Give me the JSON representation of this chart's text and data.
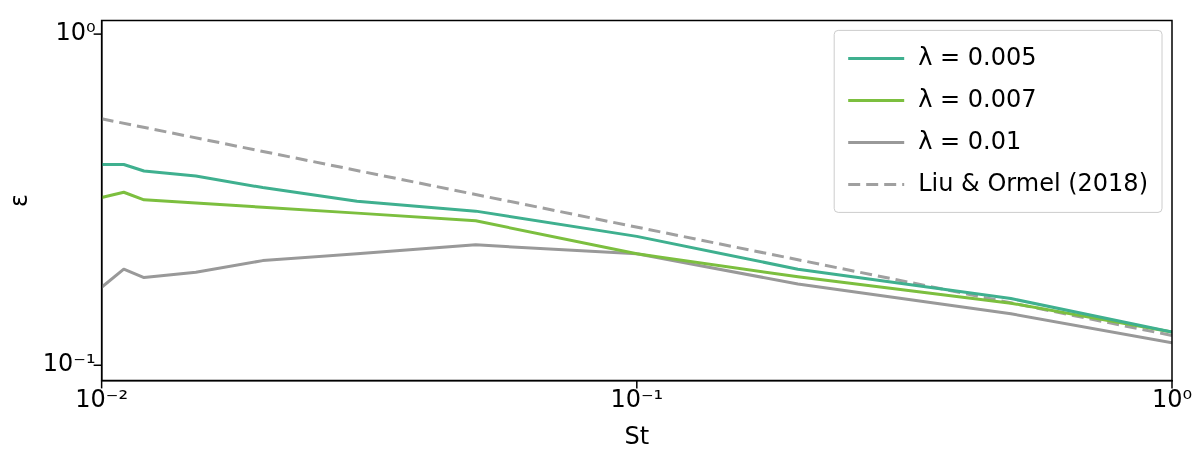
{
  "chart_data": {
    "type": "line",
    "xlabel": "St",
    "ylabel": "ε",
    "log": "xy",
    "grid": false,
    "legend": "top right",
    "marker": "none",
    "xlim": [
      0.01,
      1
    ],
    "ylim": [
      0.09,
      1.1
    ],
    "xticks": [
      {
        "value": 0.01,
        "label": "10⁻²"
      },
      {
        "value": 0.1,
        "label": "10⁻¹"
      },
      {
        "value": 1,
        "label": "10⁰"
      }
    ],
    "yticks": [
      {
        "value": 0.1,
        "label": "10⁻¹"
      },
      {
        "value": 1,
        "label": "10⁰"
      }
    ],
    "x": [
      0.01,
      0.011,
      0.012,
      0.015,
      0.02,
      0.03,
      0.05,
      0.1,
      0.2,
      0.5,
      1
    ],
    "series": [
      {
        "name": "λ = 0.005",
        "color": "#3fb08f",
        "line_style": "solid",
        "values": [
          0.404,
          0.404,
          0.386,
          0.373,
          0.344,
          0.313,
          0.292,
          0.245,
          0.195,
          0.159,
          0.126
        ]
      },
      {
        "name": "λ = 0.007",
        "color": "#7cbf3f",
        "line_style": "solid",
        "values": [
          0.321,
          0.333,
          0.316,
          0.309,
          0.3,
          0.288,
          0.273,
          0.217,
          0.185,
          0.154,
          0.126
        ]
      },
      {
        "name": "λ = 0.01",
        "color": "#999999",
        "line_style": "solid",
        "values": [
          0.172,
          0.195,
          0.184,
          0.191,
          0.207,
          0.217,
          0.231,
          0.217,
          0.176,
          0.143,
          0.117
        ]
      },
      {
        "name": "Liu & Ormel (2018)",
        "color": "#a0a0a0",
        "line_style": "dashed",
        "x": [
          0.01,
          1
        ],
        "values": [
          0.555,
          0.123
        ]
      }
    ]
  }
}
